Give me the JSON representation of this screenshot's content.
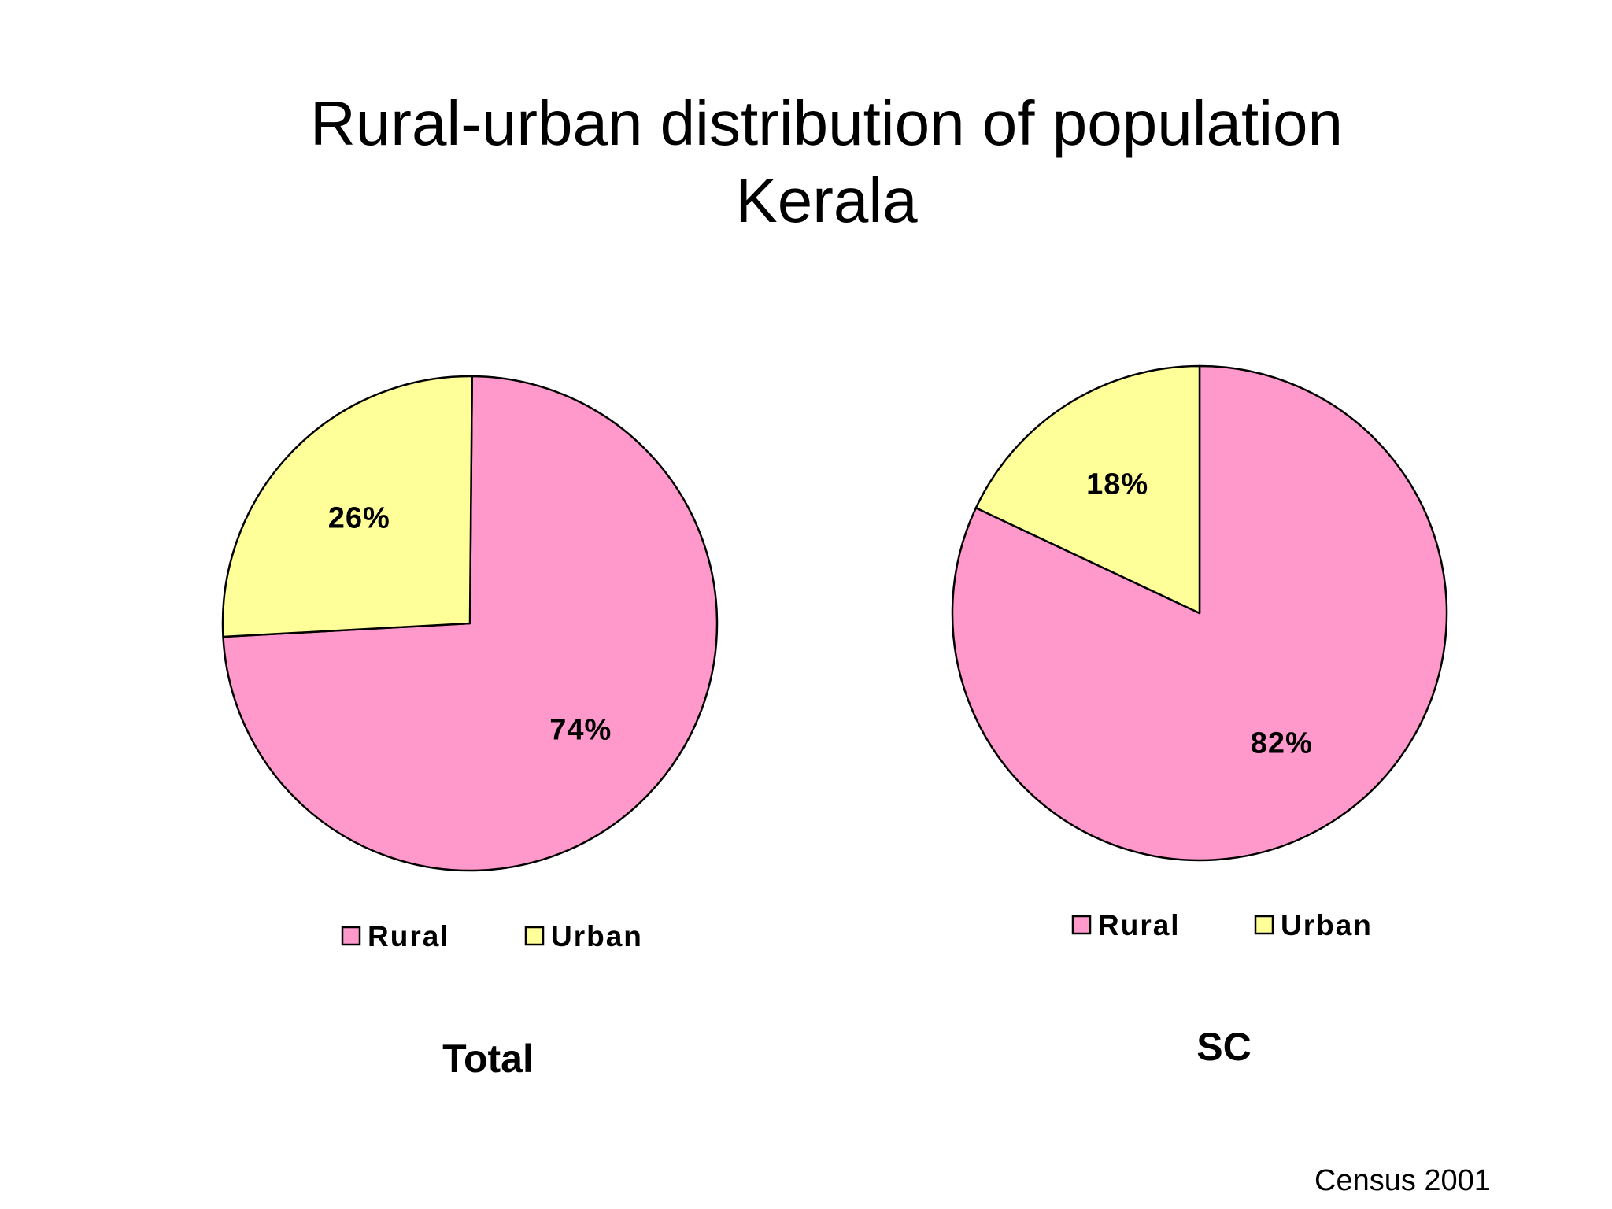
{
  "title": {
    "line1": "Rural-urban distribution of population",
    "line2": "Kerala"
  },
  "source_note": "Census 2001",
  "colors": {
    "rural": "#FF99CC",
    "urban": "#FFFF99",
    "outline": "#000000"
  },
  "chart_data": [
    {
      "type": "pie",
      "title": "Total",
      "categories": [
        "Rural",
        "Urban"
      ],
      "values": [
        74,
        26
      ],
      "data_labels": [
        "74%",
        "26%"
      ],
      "legend": [
        "Rural",
        "Urban"
      ],
      "legend_position": "bottom"
    },
    {
      "type": "pie",
      "title": "SC",
      "categories": [
        "Rural",
        "Urban"
      ],
      "values": [
        82,
        18
      ],
      "data_labels": [
        "82%",
        "18%"
      ],
      "legend": [
        "Rural",
        "Urban"
      ],
      "legend_position": "bottom"
    }
  ]
}
